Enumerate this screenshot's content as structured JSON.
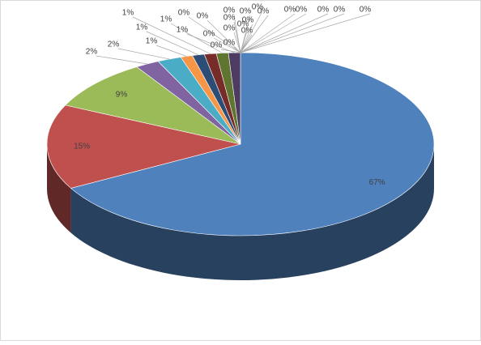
{
  "chart_data": {
    "type": "pie3d",
    "values": [
      67,
      15,
      9,
      2,
      2,
      1,
      1,
      1,
      1,
      1,
      0,
      0,
      0,
      0,
      0,
      0,
      0,
      0,
      0,
      0,
      0,
      0,
      0,
      0,
      0,
      0,
      0,
      0,
      0
    ],
    "value_labels": [
      "67%",
      "15%",
      "9%",
      "2%",
      "2%",
      "1%",
      "1%",
      "1%",
      "1%",
      "1%",
      "0%",
      "0%",
      "0%",
      "0%",
      "0%",
      "0%",
      "0%",
      "0%",
      "0%",
      "0%",
      "0%",
      "0%",
      "0%",
      "0%",
      "0%",
      "0%",
      "0%",
      "0%",
      "0%"
    ],
    "colors": [
      "#4f81bd",
      "#c0504d",
      "#9bbb59",
      "#8064a2",
      "#4bacc6",
      "#f79646",
      "#2c4d75",
      "#772c2a",
      "#5f7530",
      "#4d3b62",
      "#276a7c",
      "#b65708",
      "#729aca",
      "#cd7371",
      "#afc97a",
      "#9983b5",
      "#6fbdd1",
      "#f9ab6b",
      "#3a679c",
      "#9e3b38",
      "#7f9c40",
      "#674f86",
      "#3a8ea4",
      "#e67a19",
      "#95b3d7",
      "#d99694",
      "#c3d69b",
      "#b2a1c7",
      "#93cddd"
    ]
  }
}
